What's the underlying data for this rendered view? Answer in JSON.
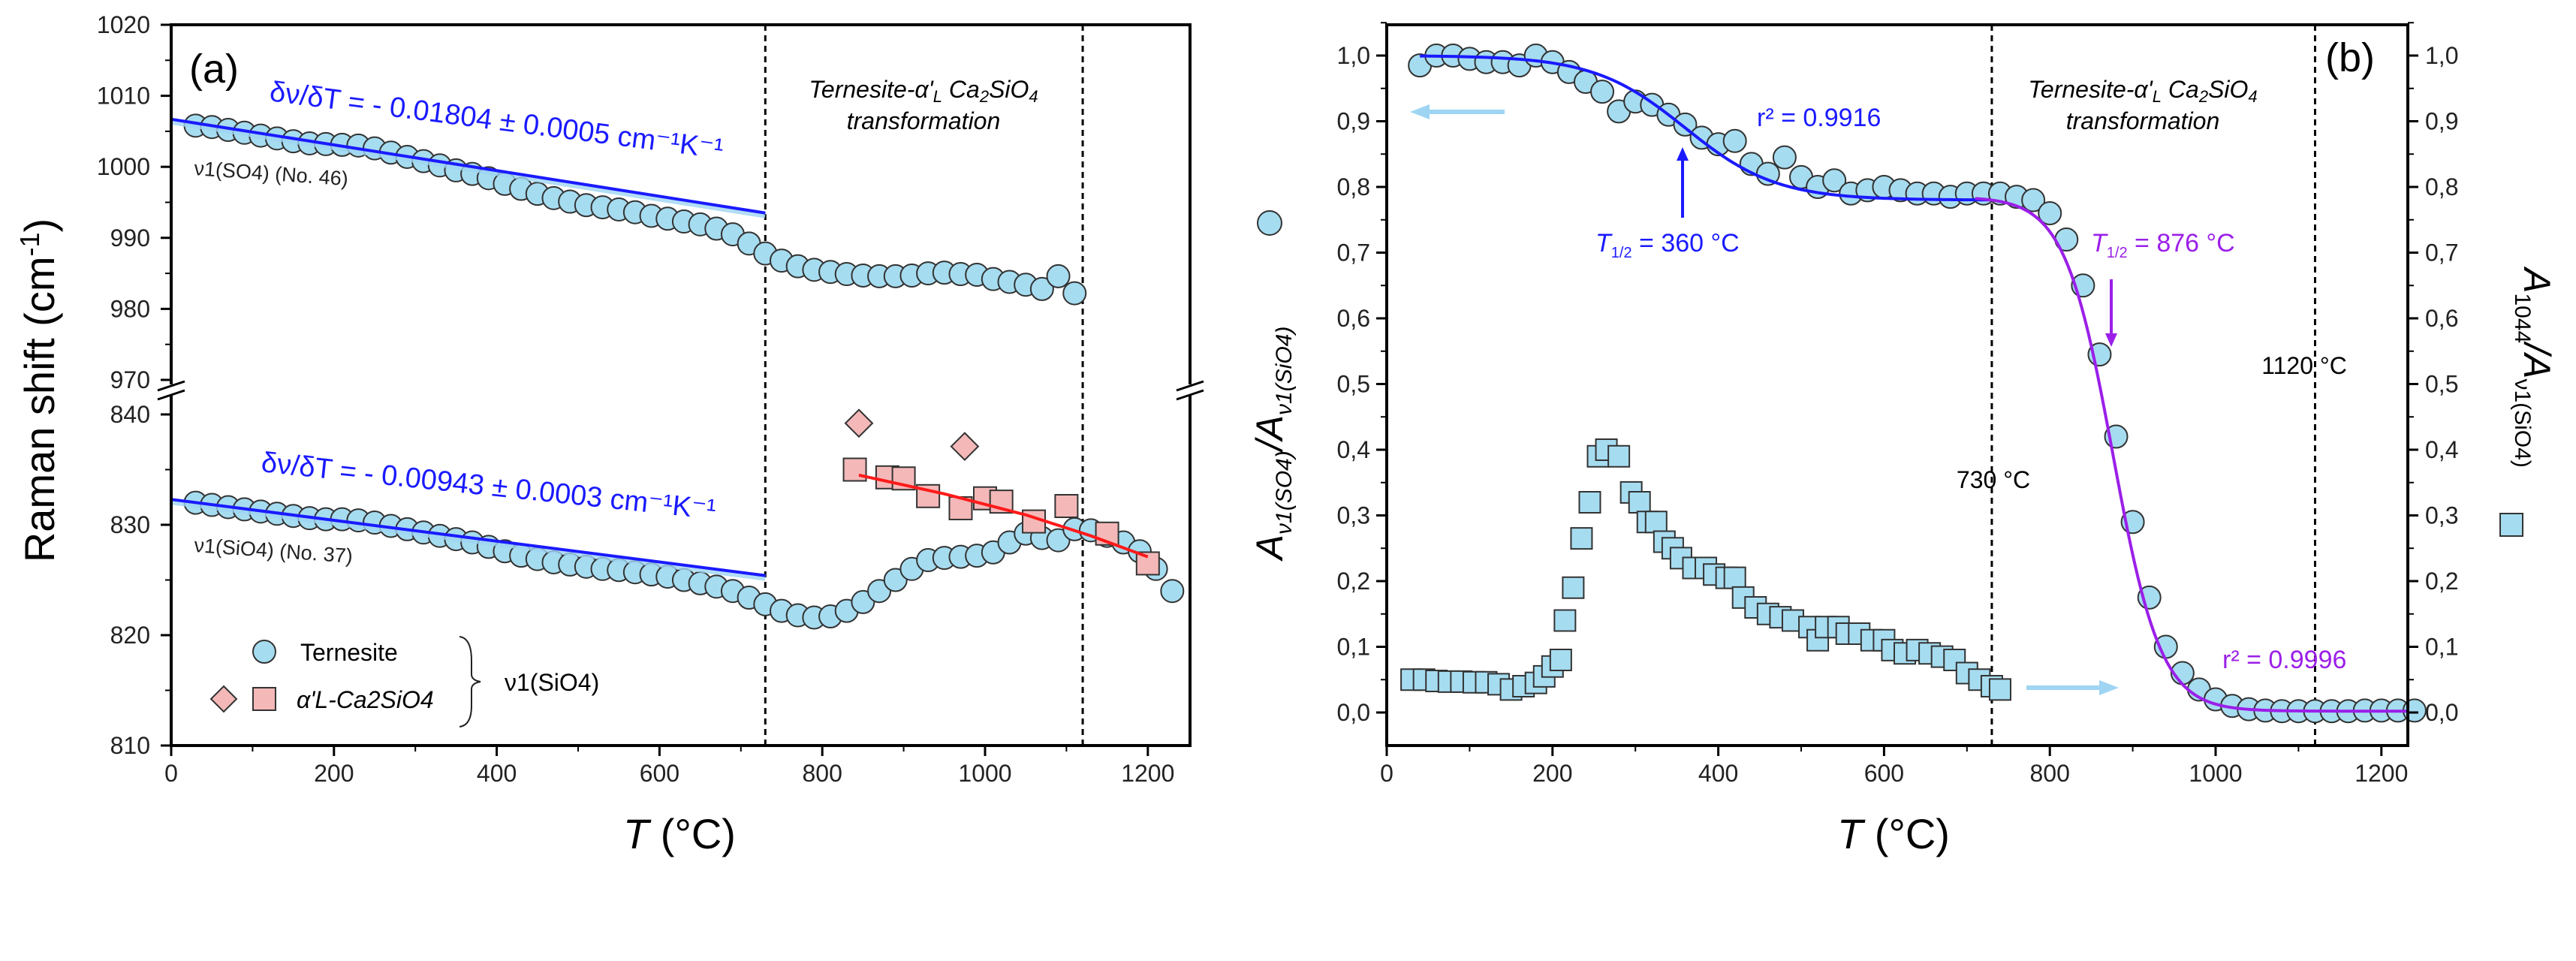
{
  "chart_data": [
    {
      "type": "scatter",
      "panel_label": "(a)",
      "xlabel_var": "T",
      "xlabel_unit": " (°C)",
      "ylabel": "Raman shift (cm",
      "ylabel_sup": "-1",
      "ylabel_end": ")",
      "xlim": [
        0,
        1250
      ],
      "ylim_upper": [
        970,
        1020
      ],
      "ylim_lower": [
        810,
        842
      ],
      "xticks": [
        0,
        200,
        400,
        600,
        800,
        1000,
        1200
      ],
      "yticks_upper": [
        970,
        980,
        990,
        1000,
        1010,
        1020
      ],
      "yticks_lower": [
        810,
        820,
        830,
        840
      ],
      "vlines": [
        730,
        1120
      ],
      "region_label_1": "Ternesite-α'",
      "region_label_sub": "L",
      "region_label_2": " Ca",
      "region_label_3": "SiO",
      "region_label_line2": "transformation",
      "slope_upper": {
        "text": "δν/δT = - 0.01804 ± 0.0005 cm⁻¹K⁻¹",
        "fit": [
          [
            0,
            1006.7
          ],
          [
            730,
            993.5
          ]
        ]
      },
      "slope_lower": {
        "text": "δν/δT = - 0.00943 ± 0.0003 cm⁻¹K⁻¹",
        "fit": [
          [
            0,
            832.3
          ],
          [
            730,
            825.4
          ]
        ]
      },
      "band_upper": "ν1(SO4) (No. 46)",
      "band_lower": "ν1(SiO4) (No. 37)",
      "legend": {
        "ternesite": "Ternesite",
        "alpha": "α'L-Ca2SiO4",
        "group": "ν1(SiO4)"
      },
      "series": [
        {
          "name": "Ternesite ν1(SO4)",
          "marker": "circle",
          "x_start": 30,
          "x_step": 20,
          "y": [
            1005.8,
            1005.6,
            1005.2,
            1004.8,
            1004.4,
            1004.0,
            1003.6,
            1003.3,
            1003.2,
            1003.1,
            1003.0,
            1002.6,
            1002.0,
            1001.4,
            1000.8,
            1000.2,
            999.5,
            999.0,
            998.4,
            997.6,
            996.9,
            996.2,
            995.6,
            995.1,
            994.6,
            994.3,
            994.0,
            993.6,
            993.1,
            992.7,
            992.3,
            991.9,
            991.3,
            990.5,
            989.2,
            987.8,
            986.8,
            986.0,
            985.5,
            985.2,
            984.9,
            984.7,
            984.6,
            984.6,
            984.7,
            985.0,
            985.1,
            984.9,
            984.8,
            984.2,
            983.8,
            983.4,
            982.8,
            984.6,
            982.2
          ]
        },
        {
          "name": "Ternesite ν1(SiO4)",
          "marker": "circle",
          "x_start": 30,
          "x_step": 20,
          "y": [
            832.0,
            831.8,
            831.6,
            831.4,
            831.2,
            831.0,
            830.8,
            830.6,
            830.5,
            830.5,
            830.4,
            830.2,
            829.9,
            829.6,
            829.3,
            829.0,
            828.7,
            828.4,
            828.0,
            827.6,
            827.2,
            826.9,
            826.6,
            826.4,
            826.2,
            826.0,
            825.9,
            825.7,
            825.5,
            825.3,
            825.0,
            824.7,
            824.4,
            824.0,
            823.4,
            822.8,
            822.2,
            821.8,
            821.6,
            821.7,
            822.2,
            823.0,
            824.0,
            825.0,
            826.0,
            826.8,
            827.0,
            827.1,
            827.2,
            827.5,
            828.4,
            829.2,
            828.8,
            828.6,
            829.6,
            829.5,
            829.0,
            828.4,
            827.6,
            826.0,
            824.0
          ]
        },
        {
          "name": "α'L-Ca2SiO4 (square)",
          "marker": "square",
          "points": [
            [
              840,
              835.0
            ],
            [
              880,
              834.3
            ],
            [
              900,
              834.2
            ],
            [
              930,
              832.6
            ],
            [
              970,
              831.5
            ],
            [
              1000,
              832.4
            ],
            [
              1020,
              832.1
            ],
            [
              1060,
              830.3
            ],
            [
              1100,
              831.7
            ],
            [
              1150,
              829.2
            ],
            [
              1200,
              826.5
            ]
          ]
        },
        {
          "name": "α'L-Ca2SiO4 (diamond)",
          "marker": "diamond",
          "points": [
            [
              845,
              839.2
            ],
            [
              975,
              837.1
            ]
          ]
        },
        {
          "name": "α'L fit",
          "marker": "line",
          "points": [
            [
              845,
              834.5
            ],
            [
              950,
              832.8
            ],
            [
              1050,
              830.9
            ],
            [
              1130,
              829.0
            ],
            [
              1200,
              827.1
            ]
          ]
        }
      ]
    },
    {
      "type": "scatter",
      "panel_label": "(b)",
      "xlabel_var": "T",
      "xlabel_unit": " (°C)",
      "ylabel_left": "A",
      "ylabel_left_sub1": "ν1(SO4)",
      "ylabel_left_mid": "/A",
      "ylabel_left_sub2": "ν1(SiO4)",
      "ylabel_right": "A",
      "ylabel_right_sub1": "1044",
      "ylabel_right_mid": "/A",
      "ylabel_right_sub2": "ν1(SiO4)",
      "xlim": [
        0,
        1232
      ],
      "ylim": [
        -0.05,
        1.05
      ],
      "xticks": [
        0,
        200,
        400,
        600,
        800,
        1000,
        1200
      ],
      "yticks": [
        "0,0",
        "0,1",
        "0,2",
        "0,3",
        "0,4",
        "0,5",
        "0,6",
        "0,7",
        "0,8",
        "0,9",
        "1,0"
      ],
      "vlines": [
        730,
        1120
      ],
      "vline_labels": [
        "730 °C",
        "1120 °C"
      ],
      "region_label_line2": "transformation",
      "r2_blue": "r² = 0.9916",
      "r2_purple": "r² = 0.9996",
      "t_half_blue": {
        "label": "T",
        "sub": "1/2",
        "value": " = 360 °C",
        "T": 360
      },
      "t_half_purple": {
        "label": "T",
        "sub": "1/2",
        "value": " = 876 °C",
        "T": 876
      },
      "colors": {
        "blue": "#1a1aff",
        "purple": "#9b1fe8",
        "marker": "#a6dcf0",
        "arrow": "#9fd5f3",
        "red": "#ff1a1a",
        "pink": "#f4b8b8"
      },
      "series": [
        {
          "name": "Aν1(SO4)/Aν1(SiO4)",
          "marker": "circle",
          "axis": "left",
          "x_start": 40,
          "x_step": 20,
          "y": [
            0.985,
            1.0,
            1.0,
            0.995,
            0.99,
            0.99,
            0.985,
            1.0,
            0.99,
            0.975,
            0.96,
            0.945,
            0.915,
            0.93,
            0.925,
            0.91,
            0.895,
            0.875,
            0.865,
            0.87,
            0.835,
            0.82,
            0.845,
            0.815,
            0.8,
            0.81,
            0.79,
            0.795,
            0.8,
            0.795,
            0.79,
            0.79,
            0.785,
            0.79,
            0.79,
            0.79,
            0.785,
            0.78,
            0.76,
            0.72,
            0.65,
            0.545,
            0.42,
            0.29,
            0.175,
            0.1,
            0.06,
            0.035,
            0.02,
            0.01,
            0.005,
            0.003,
            0.002,
            0.002,
            0.002,
            0.002,
            0.002,
            0.003,
            0.003,
            0.003,
            0.003
          ]
        },
        {
          "name": "A1044/Aν1(SiO4)",
          "marker": "square",
          "axis": "right",
          "points": [
            [
              30,
              0.05
            ],
            [
              45,
              0.05
            ],
            [
              60,
              0.048
            ],
            [
              75,
              0.047
            ],
            [
              90,
              0.047
            ],
            [
              105,
              0.046
            ],
            [
              120,
              0.046
            ],
            [
              135,
              0.043
            ],
            [
              150,
              0.035
            ],
            [
              165,
              0.04
            ],
            [
              180,
              0.045
            ],
            [
              190,
              0.055
            ],
            [
              200,
              0.07
            ],
            [
              210,
              0.08
            ],
            [
              215,
              0.14
            ],
            [
              225,
              0.19
            ],
            [
              235,
              0.265
            ],
            [
              245,
              0.32
            ],
            [
              255,
              0.39
            ],
            [
              265,
              0.4
            ],
            [
              280,
              0.39
            ],
            [
              295,
              0.335
            ],
            [
              305,
              0.32
            ],
            [
              315,
              0.29
            ],
            [
              325,
              0.29
            ],
            [
              335,
              0.26
            ],
            [
              345,
              0.25
            ],
            [
              355,
              0.235
            ],
            [
              370,
              0.22
            ],
            [
              385,
              0.22
            ],
            [
              395,
              0.21
            ],
            [
              410,
              0.205
            ],
            [
              420,
              0.205
            ],
            [
              430,
              0.175
            ],
            [
              445,
              0.16
            ],
            [
              460,
              0.15
            ],
            [
              475,
              0.145
            ],
            [
              490,
              0.14
            ],
            [
              510,
              0.13
            ],
            [
              520,
              0.11
            ],
            [
              530,
              0.13
            ],
            [
              545,
              0.13
            ],
            [
              555,
              0.12
            ],
            [
              570,
              0.12
            ],
            [
              585,
              0.11
            ],
            [
              600,
              0.11
            ],
            [
              610,
              0.095
            ],
            [
              625,
              0.09
            ],
            [
              640,
              0.095
            ],
            [
              655,
              0.09
            ],
            [
              670,
              0.085
            ],
            [
              685,
              0.08
            ],
            [
              700,
              0.06
            ],
            [
              715,
              0.05
            ],
            [
              730,
              0.04
            ],
            [
              740,
              0.035
            ]
          ]
        },
        {
          "name": "Boltzmann fit 1",
          "marker": "line",
          "color": "blue",
          "range": [
            40,
            730
          ],
          "params": {
            "base": 0.78,
            "amp": 0.22,
            "T_half": 360,
            "width": 55
          }
        },
        {
          "name": "Boltzmann fit 2",
          "marker": "line",
          "color": "purple",
          "range": [
            710,
            1232
          ],
          "params": {
            "base": 0.002,
            "amp": 0.783,
            "T_half": 876,
            "width": 29
          }
        }
      ]
    }
  ]
}
